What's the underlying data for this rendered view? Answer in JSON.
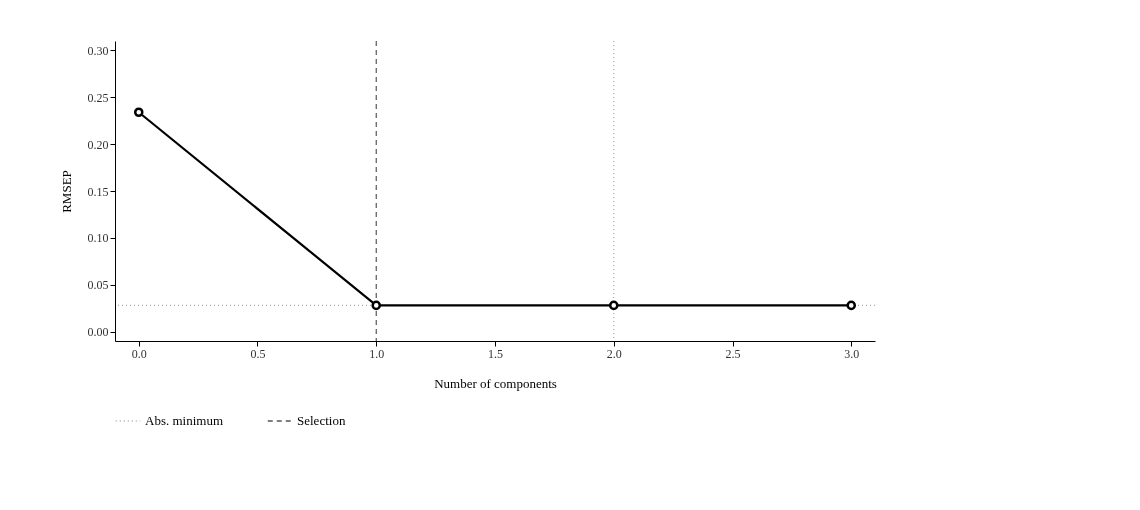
{
  "chart_data": {
    "type": "line",
    "xlabel": "Number of components",
    "ylabel": "RMSEP",
    "x": [
      0,
      1,
      2,
      3
    ],
    "series": [
      {
        "color": "#000000",
        "values": [
          0.234,
          0.028,
          0.028,
          0.028
        ]
      }
    ],
    "marker": "circle",
    "line_style": "solid",
    "xlim": [
      -0.1,
      3.1
    ],
    "ylim": [
      -0.01,
      0.31
    ],
    "xticks": [
      {
        "value": 0,
        "label": "0.0"
      },
      0.5,
      {
        "value": 1,
        "label": "1.0"
      },
      1.5,
      {
        "value": 2,
        "label": "2.0"
      },
      2.5,
      {
        "value": 3,
        "label": "3.0"
      }
    ],
    "yticks": [
      {
        "value": 0,
        "label": "0.00"
      },
      0.05,
      {
        "value": 0.1,
        "label": "0.10"
      },
      0.15,
      {
        "value": 0.2,
        "label": "0.20"
      },
      0.25,
      {
        "value": 0.3,
        "label": "0.30"
      }
    ],
    "ref_lines": [
      {
        "axis": "y",
        "value": 0.028,
        "label": "Abs. minimum",
        "color": "#aaaaaa",
        "line_style": "dotted"
      },
      {
        "axis": "x",
        "value": 2,
        "color": "#aaaaaa",
        "line_style": "dotted"
      },
      {
        "axis": "x",
        "value": 1,
        "label": "Selection",
        "color": "#555555",
        "line_style": "dashed"
      }
    ],
    "grid": false,
    "legend": "bottom"
  }
}
